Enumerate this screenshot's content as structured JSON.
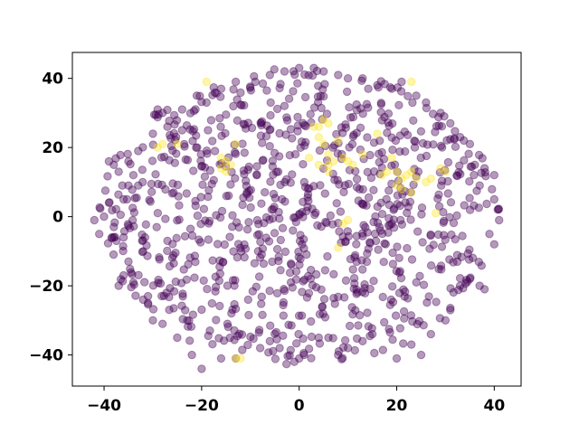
{
  "chart_data": {
    "type": "scatter",
    "title": "",
    "xlabel": "",
    "ylabel": "",
    "xlim": [
      -46.5,
      45.5
    ],
    "ylim": [
      -49,
      47.5
    ],
    "xticks": [
      -40,
      -20,
      0,
      20,
      40
    ],
    "yticks": [
      -40,
      -20,
      0,
      20,
      40
    ],
    "xtick_labels": [
      "−40",
      "−20",
      "0",
      "20",
      "40"
    ],
    "ytick_labels": [
      "−40",
      "−20",
      "0",
      "20",
      "40"
    ],
    "grid": false,
    "legend": "none",
    "marker_alpha": 0.4,
    "colors": {
      "class_0": "#440154",
      "class_1": "#fde725",
      "axes": "#000000",
      "background": "#ffffff"
    },
    "series": [
      {
        "class": 0,
        "color": "#440154",
        "density": {
          "center": [
            0,
            0
          ],
          "radius_x": 41,
          "radius_y": 43,
          "count": 900,
          "seed": 7
        },
        "points": [
          [
            -42,
            -1
          ],
          [
            -41,
            -5
          ],
          [
            -39,
            16
          ],
          [
            -38,
            15
          ],
          [
            -38,
            -6
          ],
          [
            -37,
            -20
          ],
          [
            -36,
            5
          ],
          [
            -36,
            -6
          ],
          [
            -35,
            9
          ],
          [
            -35,
            -13
          ],
          [
            -34,
            12
          ],
          [
            -33,
            9
          ],
          [
            -32,
            -10
          ],
          [
            -31,
            -23
          ],
          [
            -31,
            -25
          ],
          [
            -30,
            -30
          ],
          [
            -29,
            31
          ],
          [
            -28,
            30
          ],
          [
            -28,
            -31
          ],
          [
            -27,
            -7
          ],
          [
            -25,
            -35
          ],
          [
            -24,
            25
          ],
          [
            -22,
            -40
          ],
          [
            -20,
            -44
          ],
          [
            -16,
            -41
          ],
          [
            -13,
            -41
          ],
          [
            -8,
            -38
          ],
          [
            -6,
            -36
          ],
          [
            -4,
            -38
          ],
          [
            -1,
            -42
          ],
          [
            0,
            -41
          ],
          [
            1,
            -40
          ],
          [
            4,
            -35
          ],
          [
            6,
            -35
          ],
          [
            8,
            -40
          ],
          [
            10,
            -38
          ],
          [
            13,
            -36
          ],
          [
            15,
            -34
          ],
          [
            20,
            -41
          ],
          [
            23,
            -37
          ],
          [
            25,
            -40
          ],
          [
            27,
            -34
          ],
          [
            30,
            -30
          ],
          [
            31,
            -27
          ],
          [
            33,
            -20
          ],
          [
            35,
            -18
          ],
          [
            37,
            -20
          ],
          [
            38,
            -21
          ],
          [
            39,
            -5
          ],
          [
            40,
            -8
          ],
          [
            40,
            5
          ],
          [
            41,
            -1
          ],
          [
            40,
            12
          ],
          [
            38,
            14
          ],
          [
            37,
            9
          ],
          [
            36,
            15
          ],
          [
            35,
            21
          ],
          [
            33,
            23
          ],
          [
            31,
            27
          ],
          [
            29,
            30
          ],
          [
            26,
            33
          ],
          [
            24,
            35
          ],
          [
            21,
            39
          ],
          [
            19,
            37
          ],
          [
            16,
            38
          ],
          [
            13,
            40
          ],
          [
            10,
            40
          ],
          [
            8,
            41
          ],
          [
            5,
            42
          ],
          [
            3,
            43
          ],
          [
            0,
            43
          ],
          [
            -3,
            42
          ],
          [
            -6,
            41
          ],
          [
            -9,
            39
          ],
          [
            -13,
            39
          ],
          [
            -16,
            37
          ],
          [
            -19,
            33
          ],
          [
            -21,
            35
          ],
          [
            -24,
            31
          ],
          [
            -27,
            26
          ],
          [
            -30,
            24
          ],
          [
            -33,
            19
          ],
          [
            -35,
            16
          ],
          [
            -37,
            13
          ],
          [
            -39,
            4
          ],
          [
            -40,
            0
          ],
          [
            -38,
            -3
          ],
          [
            -36,
            -17
          ],
          [
            -34,
            -19
          ],
          [
            -32,
            -24
          ]
        ]
      },
      {
        "class": 1,
        "color": "#fde725",
        "points": [
          [
            -19,
            39
          ],
          [
            -13,
            -41
          ],
          [
            -12,
            -41
          ],
          [
            23,
            39
          ],
          [
            -29,
            20
          ],
          [
            -28,
            21
          ],
          [
            -16,
            17
          ],
          [
            -15,
            16
          ],
          [
            -14,
            15
          ],
          [
            -16,
            14
          ],
          [
            -15,
            13
          ],
          [
            3,
            26
          ],
          [
            4,
            26
          ],
          [
            6,
            27
          ],
          [
            5,
            28
          ],
          [
            4,
            23
          ],
          [
            5,
            21
          ],
          [
            6,
            18
          ],
          [
            7,
            16
          ],
          [
            6,
            15
          ],
          [
            9,
            17
          ],
          [
            10,
            16
          ],
          [
            11,
            15
          ],
          [
            18,
            13
          ],
          [
            20,
            13
          ],
          [
            21,
            11
          ],
          [
            22,
            12
          ],
          [
            23,
            13
          ],
          [
            24,
            11
          ],
          [
            26,
            10
          ],
          [
            27,
            11
          ],
          [
            29,
            14
          ],
          [
            30,
            13
          ],
          [
            21,
            8
          ],
          [
            20,
            9
          ],
          [
            23,
            7
          ],
          [
            9,
            -2
          ],
          [
            10,
            -1
          ],
          [
            8,
            -9
          ],
          [
            4,
            15
          ],
          [
            -13,
            21
          ],
          [
            8,
            22
          ],
          [
            16,
            24
          ],
          [
            13,
            18
          ],
          [
            28,
            1
          ],
          [
            -25,
            21
          ],
          [
            19,
            17
          ],
          [
            2,
            17
          ],
          [
            17,
            12
          ],
          [
            6,
            13
          ]
        ]
      }
    ]
  }
}
